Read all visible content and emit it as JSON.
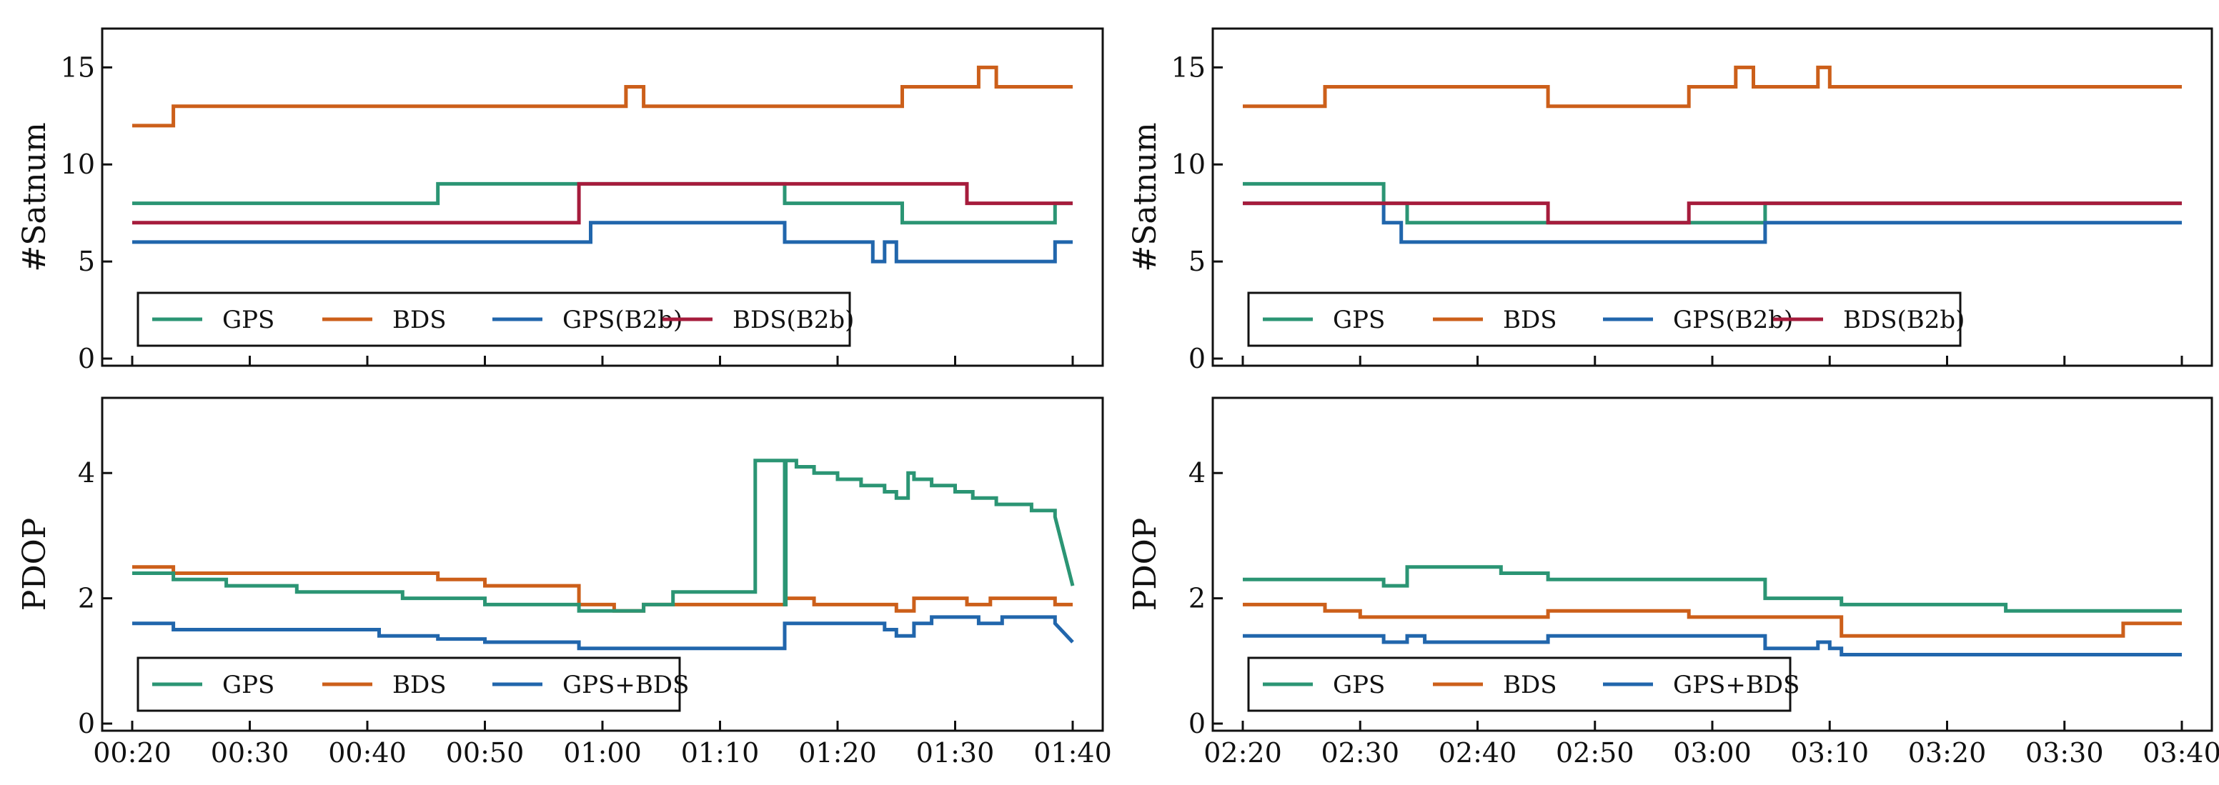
{
  "colors": {
    "GPS": "#2b9574",
    "BDS": "#cc5f1a",
    "GPS(B2b)": "#2166ac",
    "BDS(B2b)": "#a61c3c",
    "GPS+BDS": "#2166ac"
  },
  "chart_data": [
    {
      "type": "line",
      "panel": "top-left",
      "ylabel": "#Satnum",
      "ylim": [
        0,
        17
      ],
      "yticks": [
        0,
        5,
        10,
        15
      ],
      "xlim": [
        20,
        100
      ],
      "xticks": [
        20,
        30,
        40,
        50,
        60,
        70,
        80,
        90,
        100
      ],
      "xticklabels": [],
      "legend": [
        "GPS",
        "BDS",
        "GPS(B2b)",
        "BDS(B2b)"
      ],
      "legend_position": "lower-left",
      "series": [
        {
          "name": "BDS",
          "x": [
            20,
            23.5,
            23.5,
            62,
            62,
            63.5,
            63.5,
            85.5,
            85.5,
            92,
            92,
            93.5,
            93.5,
            100
          ],
          "y": [
            12,
            12,
            13,
            13,
            14,
            14,
            13,
            13,
            14,
            14,
            15,
            15,
            14,
            14
          ]
        },
        {
          "name": "GPS",
          "x": [
            20,
            46,
            46,
            75.5,
            75.5,
            85.5,
            85.5,
            98.5,
            98.5,
            100
          ],
          "y": [
            8,
            8,
            9,
            9,
            8,
            8,
            7,
            7,
            8,
            8
          ]
        },
        {
          "name": "BDS(B2b)",
          "x": [
            20,
            58,
            58,
            91,
            91,
            100
          ],
          "y": [
            7,
            7,
            9,
            9,
            8,
            8
          ]
        },
        {
          "name": "GPS(B2b)",
          "x": [
            20,
            59,
            59,
            75.5,
            75.5,
            83,
            83,
            84,
            84,
            85,
            85,
            98.5,
            98.5,
            100
          ],
          "y": [
            6,
            6,
            7,
            7,
            6,
            6,
            5,
            5,
            6,
            6,
            5,
            5,
            6,
            6
          ]
        }
      ]
    },
    {
      "type": "line",
      "panel": "top-right",
      "ylabel": "#Satnum",
      "ylim": [
        0,
        17
      ],
      "yticks": [
        0,
        5,
        10,
        15
      ],
      "xlim": [
        140,
        220
      ],
      "xticks": [
        140,
        150,
        160,
        170,
        180,
        190,
        200,
        210,
        220
      ],
      "xticklabels": [],
      "legend": [
        "GPS",
        "BDS",
        "GPS(B2b)",
        "BDS(B2b)"
      ],
      "legend_position": "lower-left",
      "series": [
        {
          "name": "BDS",
          "x": [
            140,
            147,
            147,
            166,
            166,
            178,
            178,
            182,
            182,
            183.5,
            183.5,
            189,
            189,
            190,
            190,
            220
          ],
          "y": [
            13,
            13,
            14,
            14,
            13,
            13,
            14,
            14,
            15,
            15,
            14,
            14,
            15,
            15,
            14,
            14
          ]
        },
        {
          "name": "GPS",
          "x": [
            140,
            152,
            152,
            154,
            154,
            184.5,
            184.5,
            220
          ],
          "y": [
            9,
            9,
            8,
            8,
            7,
            7,
            8,
            8
          ]
        },
        {
          "name": "GPS(B2b)",
          "x": [
            140,
            152,
            152,
            153.5,
            153.5,
            184.5,
            184.5,
            220
          ],
          "y": [
            8,
            8,
            7,
            7,
            6,
            6,
            7,
            7
          ]
        },
        {
          "name": "BDS(B2b)",
          "x": [
            140,
            166,
            166,
            178,
            178,
            220
          ],
          "y": [
            8,
            8,
            7,
            7,
            8,
            8
          ]
        }
      ]
    },
    {
      "type": "line",
      "panel": "bottom-left",
      "ylabel": "PDOP",
      "ylim": [
        0,
        5.2
      ],
      "yticks": [
        0,
        2,
        4
      ],
      "xlim": [
        20,
        100
      ],
      "xticks": [
        20,
        30,
        40,
        50,
        60,
        70,
        80,
        90,
        100
      ],
      "xticklabels": [
        "00:20",
        "00:30",
        "00:40",
        "00:50",
        "01:00",
        "01:10",
        "01:20",
        "01:30",
        "01:40"
      ],
      "legend": [
        "GPS",
        "BDS",
        "GPS+BDS"
      ],
      "legend_position": "lower-left",
      "series": [
        {
          "name": "BDS",
          "x": [
            20,
            23.5,
            23.5,
            46,
            46,
            50,
            50,
            58,
            58,
            61,
            61,
            63.5,
            63.5,
            75.5,
            75.5,
            78,
            78,
            85,
            85,
            86.5,
            86.5,
            91,
            91,
            93,
            93,
            98.5,
            98.5,
            100
          ],
          "y": [
            2.5,
            2.5,
            2.4,
            2.4,
            2.3,
            2.3,
            2.2,
            2.2,
            1.9,
            1.9,
            1.8,
            1.8,
            1.9,
            1.9,
            2.0,
            2.0,
            1.9,
            1.9,
            1.8,
            1.8,
            2.0,
            2.0,
            1.9,
            1.9,
            2.0,
            2.0,
            1.9,
            1.9
          ]
        },
        {
          "name": "GPS",
          "x": [
            20,
            23.5,
            23.5,
            28,
            28,
            34,
            34,
            43,
            43,
            50,
            50,
            58,
            58,
            63.5,
            63.5,
            66,
            66,
            73,
            73,
            75.5,
            75.5,
            75.6,
            75.6,
            76.5,
            76.5,
            78,
            78,
            80,
            80,
            82,
            82,
            84,
            84,
            85,
            85,
            86,
            86,
            86.5,
            86.5,
            88,
            88,
            90,
            90,
            91.5,
            91.5,
            93.5,
            93.5,
            96.5,
            96.5,
            98.5,
            98.5,
            100
          ],
          "y": [
            2.4,
            2.4,
            2.3,
            2.3,
            2.2,
            2.2,
            2.1,
            2.1,
            2.0,
            2.0,
            1.9,
            1.9,
            1.8,
            1.8,
            1.9,
            1.9,
            2.1,
            2.1,
            4.2,
            4.2,
            1.9,
            1.9,
            4.2,
            4.2,
            4.1,
            4.1,
            4.0,
            4.0,
            3.9,
            3.9,
            3.8,
            3.8,
            3.7,
            3.7,
            3.6,
            3.6,
            4.0,
            4.0,
            3.9,
            3.9,
            3.8,
            3.8,
            3.7,
            3.7,
            3.6,
            3.6,
            3.5,
            3.5,
            3.4,
            3.4,
            3.3,
            2.2
          ]
        },
        {
          "name": "GPS+BDS",
          "x": [
            20,
            23.5,
            23.5,
            41,
            41,
            46,
            46,
            50,
            50,
            58,
            58,
            75.5,
            75.5,
            84,
            84,
            85,
            85,
            86.5,
            86.5,
            88,
            88,
            92,
            92,
            94,
            94,
            98.5,
            98.5,
            100
          ],
          "y": [
            1.6,
            1.6,
            1.5,
            1.5,
            1.4,
            1.4,
            1.35,
            1.35,
            1.3,
            1.3,
            1.2,
            1.2,
            1.6,
            1.6,
            1.5,
            1.5,
            1.4,
            1.4,
            1.6,
            1.6,
            1.7,
            1.7,
            1.6,
            1.6,
            1.7,
            1.7,
            1.6,
            1.3
          ]
        }
      ]
    },
    {
      "type": "line",
      "panel": "bottom-right",
      "ylabel": "PDOP",
      "ylim": [
        0,
        5.2
      ],
      "yticks": [
        0,
        2,
        4
      ],
      "xlim": [
        140,
        220
      ],
      "xticks": [
        140,
        150,
        160,
        170,
        180,
        190,
        200,
        210,
        220
      ],
      "xticklabels": [
        "02:20",
        "02:30",
        "02:40",
        "02:50",
        "03:00",
        "03:10",
        "03:20",
        "03:30",
        "03:40"
      ],
      "legend": [
        "GPS",
        "BDS",
        "GPS+BDS"
      ],
      "legend_position": "lower-left",
      "series": [
        {
          "name": "GPS",
          "x": [
            140,
            152,
            152,
            154,
            154,
            162,
            162,
            166,
            166,
            178,
            178,
            184.5,
            184.5,
            191,
            191,
            205,
            205,
            220
          ],
          "y": [
            2.3,
            2.3,
            2.2,
            2.2,
            2.5,
            2.5,
            2.4,
            2.4,
            2.3,
            2.3,
            2.3,
            2.3,
            2.0,
            2.0,
            1.9,
            1.9,
            1.8,
            1.8
          ]
        },
        {
          "name": "BDS",
          "x": [
            140,
            147,
            147,
            150,
            150,
            166,
            166,
            178,
            178,
            191,
            191,
            215,
            215,
            220
          ],
          "y": [
            1.9,
            1.9,
            1.8,
            1.8,
            1.7,
            1.7,
            1.8,
            1.8,
            1.7,
            1.7,
            1.4,
            1.4,
            1.6,
            1.6
          ]
        },
        {
          "name": "GPS+BDS",
          "x": [
            140,
            152,
            152,
            154,
            154,
            155.5,
            155.5,
            166,
            166,
            184.5,
            184.5,
            189,
            189,
            190,
            190,
            191,
            191,
            220
          ],
          "y": [
            1.4,
            1.4,
            1.3,
            1.3,
            1.4,
            1.4,
            1.3,
            1.3,
            1.4,
            1.4,
            1.2,
            1.2,
            1.3,
            1.3,
            1.2,
            1.2,
            1.1,
            1.1
          ]
        }
      ]
    }
  ]
}
